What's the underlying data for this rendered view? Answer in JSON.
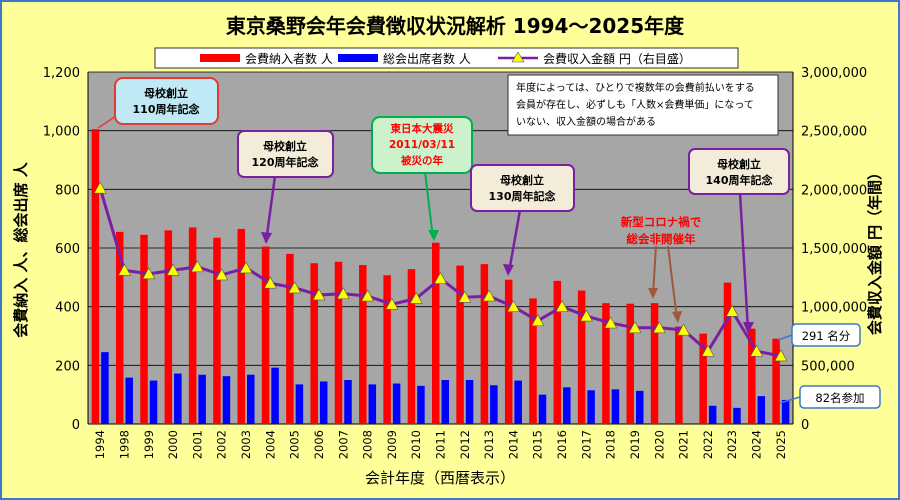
{
  "chart_data": {
    "type": "bar+line",
    "title": "東京桑野会年会費徴収状況解析  1994～2025年度",
    "xlabel": "会計年度（西暦表示）",
    "ylabel_left": "会費納入 人、総会出席 人",
    "ylabel_right": "会費収入金額  円（年間）",
    "categories": [
      "1994",
      "1998",
      "1999",
      "2000",
      "2001",
      "2002",
      "2003",
      "2004",
      "2005",
      "2006",
      "2007",
      "2008",
      "2009",
      "2010",
      "2011",
      "2012",
      "2013",
      "2014",
      "2015",
      "2016",
      "2017",
      "2018",
      "2019",
      "2020",
      "2021",
      "2022",
      "2023",
      "2024",
      "2025"
    ],
    "y_left": {
      "min": 0,
      "max": 1200,
      "step": 200,
      "tick_labels": [
        "0",
        "200",
        "400",
        "600",
        "800",
        "1,000",
        "1,200"
      ]
    },
    "y_right": {
      "min": 0,
      "max": 3000000,
      "step": 500000,
      "tick_labels": [
        "0",
        "500,000",
        "1,000,000",
        "1,500,000",
        "2,000,000",
        "2,500,000",
        "3,000,000"
      ]
    },
    "grid": true,
    "legend_position": "top",
    "series": [
      {
        "name": "会費納入者数  人",
        "type": "bar",
        "axis": "left",
        "color": "#ff0000",
        "values": [
          1005,
          655,
          645,
          660,
          670,
          635,
          665,
          605,
          580,
          548,
          553,
          542,
          507,
          528,
          618,
          540,
          545,
          492,
          428,
          488,
          455,
          412,
          410,
          412,
          332,
          308,
          482,
          325,
          291
        ]
      },
      {
        "name": "総会出席者数  人",
        "type": "bar",
        "axis": "left",
        "color": "#0000ff",
        "values": [
          245,
          158,
          148,
          172,
          168,
          163,
          168,
          192,
          135,
          145,
          150,
          135,
          138,
          130,
          150,
          150,
          132,
          148,
          100,
          125,
          115,
          118,
          113,
          0,
          0,
          62,
          55,
          95,
          82
        ]
      },
      {
        "name": "会費収入金額  円（右目盛）",
        "type": "line",
        "axis": "right",
        "color": "#7b1fa2",
        "marker_color": "#ffff00",
        "values": [
          2010000,
          1310000,
          1280000,
          1310000,
          1340000,
          1270000,
          1330000,
          1200000,
          1160000,
          1100000,
          1110000,
          1090000,
          1020000,
          1070000,
          1240000,
          1080000,
          1090000,
          1000000,
          880000,
          1000000,
          920000,
          860000,
          820000,
          820000,
          800000,
          620000,
          960000,
          620000,
          580000
        ]
      }
    ],
    "annotations": [
      {
        "text": [
          "母校創立",
          "110周年記念"
        ],
        "border": "#e53935",
        "fill": "#bfe9f5",
        "target": "1994"
      },
      {
        "text": [
          "母校創立",
          "120周年記念"
        ],
        "border": "#7b1fa2",
        "fill": "#f3ecd8",
        "target": "2004"
      },
      {
        "text": [
          "東日本大震災",
          "2011/03/11",
          "被災の年"
        ],
        "border": "#00b050",
        "fill": "#ccf2cc",
        "text_color": "#ff0000",
        "target": "2011"
      },
      {
        "text": [
          "母校創立",
          "130周年記念"
        ],
        "border": "#7b1fa2",
        "fill": "#f3ecd8",
        "target": "2014"
      },
      {
        "text": [
          "新型コロナ禍で",
          "総会非開催年"
        ],
        "text_color": "#ff0000",
        "target": "2020-2021"
      },
      {
        "text": [
          "母校創立",
          "140周年記念"
        ],
        "border": "#7b1fa2",
        "fill": "#f3ecd8",
        "target": "2024"
      },
      {
        "text": [
          "291 名分"
        ],
        "border": "#3d78c9",
        "fill": "#ffffff",
        "target": "2025"
      },
      {
        "text": [
          "82名参加"
        ],
        "border": "#3d78c9",
        "fill": "#ffffff",
        "target": "2025"
      }
    ],
    "note": [
      "年度によっては、ひとりで複数年の会費前払いをする",
      "会員が存在し、必ずしも「人数×会費単価」になって",
      "いない、収入金額の場合がある"
    ]
  }
}
